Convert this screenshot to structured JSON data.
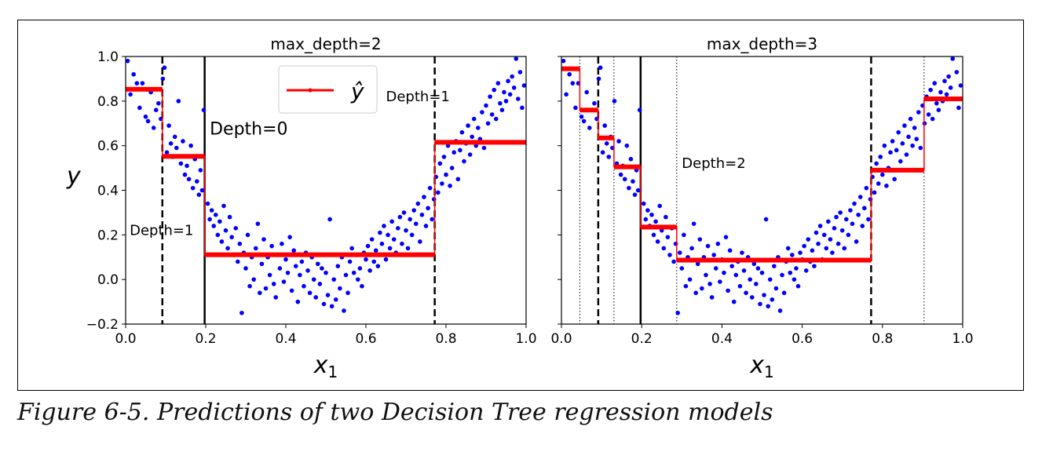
{
  "caption": "Figure 6-5. Predictions of two Decision Tree regression models",
  "chart_data": [
    {
      "type": "scatter",
      "title": "max_depth=2",
      "xlabel": "x",
      "xlabel_sub": "1",
      "ylabel": "y",
      "xlim": [
        0.0,
        1.0
      ],
      "ylim": [
        -0.2,
        1.0
      ],
      "xticks": [
        0.0,
        0.2,
        0.4,
        0.6,
        0.8,
        1.0
      ],
      "xtick_labels": [
        "0.0",
        "0.2",
        "0.4",
        "0.6",
        "0.8",
        "1.0"
      ],
      "yticks": [
        -0.2,
        0.0,
        0.2,
        0.4,
        0.6,
        0.8,
        1.0
      ],
      "ytick_labels": [
        "−0.2",
        "0.0",
        "0.2",
        "0.4",
        "0.6",
        "0.8",
        "1.0"
      ],
      "point_color": "#0000ff",
      "prediction_color": "#ff0000",
      "legend": {
        "label": "ŷ",
        "placement": "upper-center"
      },
      "prediction_steps": [
        {
          "x0": 0.0,
          "x1": 0.0917,
          "y": 0.853
        },
        {
          "x0": 0.0917,
          "x1": 0.1973,
          "y": 0.552
        },
        {
          "x0": 0.1973,
          "x1": 0.7718,
          "y": 0.111
        },
        {
          "x0": 0.7718,
          "x1": 1.0,
          "y": 0.615
        }
      ],
      "split_lines": [
        {
          "x": 0.1973,
          "style": "solid"
        },
        {
          "x": 0.0917,
          "style": "dashed"
        },
        {
          "x": 0.7718,
          "style": "dashed"
        }
      ],
      "annotations": [
        {
          "text": "Depth=0",
          "x": 0.21,
          "y": 0.65,
          "size": "large"
        },
        {
          "text": "Depth=1",
          "x": 0.01,
          "y": 0.2,
          "size": "medium"
        },
        {
          "text": "Depth=1",
          "x": 0.65,
          "y": 0.8,
          "size": "medium"
        }
      ],
      "points": [
        [
          0.005,
          0.98
        ],
        [
          0.012,
          0.83
        ],
        [
          0.02,
          0.92
        ],
        [
          0.028,
          0.88
        ],
        [
          0.035,
          0.77
        ],
        [
          0.042,
          0.88
        ],
        [
          0.05,
          0.73
        ],
        [
          0.056,
          0.71
        ],
        [
          0.063,
          0.84
        ],
        [
          0.07,
          0.68
        ],
        [
          0.076,
          0.76
        ],
        [
          0.082,
          0.79
        ],
        [
          0.088,
          0.72
        ],
        [
          0.093,
          0.9
        ],
        [
          0.097,
          0.95
        ],
        [
          0.103,
          0.57
        ],
        [
          0.108,
          0.69
        ],
        [
          0.113,
          0.61
        ],
        [
          0.118,
          0.55
        ],
        [
          0.123,
          0.64
        ],
        [
          0.127,
          0.59
        ],
        [
          0.132,
          0.8
        ],
        [
          0.138,
          0.52
        ],
        [
          0.143,
          0.62
        ],
        [
          0.148,
          0.47
        ],
        [
          0.153,
          0.51
        ],
        [
          0.158,
          0.45
        ],
        [
          0.163,
          0.6
        ],
        [
          0.168,
          0.41
        ],
        [
          0.173,
          0.54
        ],
        [
          0.178,
          0.44
        ],
        [
          0.183,
          0.38
        ],
        [
          0.187,
          0.49
        ],
        [
          0.191,
          0.4
        ],
        [
          0.195,
          0.76
        ],
        [
          0.205,
          0.34
        ],
        [
          0.21,
          0.27
        ],
        [
          0.215,
          0.31
        ],
        [
          0.22,
          0.24
        ],
        [
          0.225,
          0.29
        ],
        [
          0.23,
          0.2
        ],
        [
          0.235,
          0.26
        ],
        [
          0.24,
          0.17
        ],
        [
          0.245,
          0.33
        ],
        [
          0.25,
          0.22
        ],
        [
          0.255,
          0.14
        ],
        [
          0.26,
          0.28
        ],
        [
          0.265,
          0.19
        ],
        [
          0.27,
          0.11
        ],
        [
          0.275,
          0.23
        ],
        [
          0.28,
          0.08
        ],
        [
          0.285,
          0.16
        ],
        [
          0.29,
          -0.15
        ],
        [
          0.295,
          0.12
        ],
        [
          0.3,
          0.05
        ],
        [
          0.305,
          0.2
        ],
        [
          0.31,
          -0.03
        ],
        [
          0.315,
          0.1
        ],
        [
          0.32,
          0.0
        ],
        [
          0.325,
          0.14
        ],
        [
          0.33,
          0.25
        ],
        [
          0.335,
          -0.06
        ],
        [
          0.34,
          0.07
        ],
        [
          0.345,
          0.18
        ],
        [
          0.35,
          -0.04
        ],
        [
          0.355,
          0.1
        ],
        [
          0.36,
          0.02
        ],
        [
          0.365,
          0.15
        ],
        [
          0.37,
          -0.02
        ],
        [
          0.375,
          -0.08
        ],
        [
          0.38,
          0.11
        ],
        [
          0.385,
          0.05
        ],
        [
          0.39,
          0.16
        ],
        [
          0.395,
          -0.01
        ],
        [
          0.4,
          0.09
        ],
        [
          0.405,
          0.03
        ],
        [
          0.41,
          0.19
        ],
        [
          0.415,
          -0.05
        ],
        [
          0.42,
          0.13
        ],
        [
          0.425,
          0.06
        ],
        [
          0.43,
          -0.1
        ],
        [
          0.435,
          0.02
        ],
        [
          0.44,
          0.08
        ],
        [
          0.445,
          -0.03
        ],
        [
          0.45,
          0.12
        ],
        [
          0.455,
          0.04
        ],
        [
          0.46,
          -0.06
        ],
        [
          0.465,
          0.1
        ],
        [
          0.47,
          0.0
        ],
        [
          0.475,
          -0.08
        ],
        [
          0.48,
          0.07
        ],
        [
          0.485,
          -0.02
        ],
        [
          0.49,
          0.05
        ],
        [
          0.495,
          -0.11
        ],
        [
          0.5,
          0.03
        ],
        [
          0.505,
          -0.07
        ],
        [
          0.51,
          0.27
        ],
        [
          0.515,
          -0.12
        ],
        [
          0.52,
          0.0
        ],
        [
          0.525,
          -0.09
        ],
        [
          0.53,
          0.06
        ],
        [
          0.535,
          -0.04
        ],
        [
          0.54,
          0.1
        ],
        [
          0.545,
          -0.14
        ],
        [
          0.55,
          0.02
        ],
        [
          0.555,
          -0.06
        ],
        [
          0.56,
          0.08
        ],
        [
          0.565,
          0.14
        ],
        [
          0.57,
          0.03
        ],
        [
          0.575,
          0.11
        ],
        [
          0.58,
          0.0
        ],
        [
          0.585,
          0.05
        ],
        [
          0.59,
          -0.03
        ],
        [
          0.595,
          0.12
        ],
        [
          0.6,
          0.09
        ],
        [
          0.605,
          0.15
        ],
        [
          0.61,
          0.04
        ],
        [
          0.615,
          0.18
        ],
        [
          0.62,
          0.08
        ],
        [
          0.625,
          0.13
        ],
        [
          0.63,
          0.06
        ],
        [
          0.635,
          0.21
        ],
        [
          0.64,
          0.16
        ],
        [
          0.645,
          0.24
        ],
        [
          0.65,
          0.09
        ],
        [
          0.655,
          0.2
        ],
        [
          0.66,
          0.14
        ],
        [
          0.665,
          0.26
        ],
        [
          0.67,
          0.18
        ],
        [
          0.675,
          0.12
        ],
        [
          0.68,
          0.23
        ],
        [
          0.685,
          0.28
        ],
        [
          0.69,
          0.16
        ],
        [
          0.695,
          0.3
        ],
        [
          0.7,
          0.22
        ],
        [
          0.705,
          0.14
        ],
        [
          0.71,
          0.27
        ],
        [
          0.715,
          0.2
        ],
        [
          0.72,
          0.31
        ],
        [
          0.725,
          0.25
        ],
        [
          0.73,
          0.34
        ],
        [
          0.735,
          0.17
        ],
        [
          0.74,
          0.29
        ],
        [
          0.745,
          0.37
        ],
        [
          0.75,
          0.24
        ],
        [
          0.755,
          0.32
        ],
        [
          0.76,
          0.41
        ],
        [
          0.765,
          0.27
        ],
        [
          0.77,
          0.36
        ],
        [
          0.775,
          0.46
        ],
        [
          0.78,
          0.39
        ],
        [
          0.785,
          0.52
        ],
        [
          0.79,
          0.43
        ],
        [
          0.795,
          0.55
        ],
        [
          0.8,
          0.47
        ],
        [
          0.805,
          0.6
        ],
        [
          0.81,
          0.42
        ],
        [
          0.815,
          0.5
        ],
        [
          0.82,
          0.57
        ],
        [
          0.825,
          0.62
        ],
        [
          0.83,
          0.45
        ],
        [
          0.835,
          0.58
        ],
        [
          0.84,
          0.66
        ],
        [
          0.845,
          0.53
        ],
        [
          0.85,
          0.61
        ],
        [
          0.855,
          0.69
        ],
        [
          0.86,
          0.56
        ],
        [
          0.865,
          0.64
        ],
        [
          0.87,
          0.72
        ],
        [
          0.875,
          0.6
        ],
        [
          0.88,
          0.68
        ],
        [
          0.885,
          0.63
        ],
        [
          0.89,
          0.75
        ],
        [
          0.895,
          0.59
        ],
        [
          0.9,
          0.78
        ],
        [
          0.905,
          0.7
        ],
        [
          0.91,
          0.82
        ],
        [
          0.915,
          0.74
        ],
        [
          0.92,
          0.85
        ],
        [
          0.925,
          0.72
        ],
        [
          0.93,
          0.88
        ],
        [
          0.935,
          0.79
        ],
        [
          0.94,
          0.76
        ],
        [
          0.945,
          0.84
        ],
        [
          0.95,
          0.8
        ],
        [
          0.955,
          0.89
        ],
        [
          0.96,
          0.83
        ],
        [
          0.965,
          0.91
        ],
        [
          0.97,
          0.86
        ],
        [
          0.975,
          0.99
        ],
        [
          0.98,
          0.81
        ],
        [
          0.985,
          0.93
        ],
        [
          0.99,
          0.77
        ],
        [
          0.995,
          0.87
        ]
      ]
    },
    {
      "type": "scatter",
      "title": "max_depth=3",
      "xlabel": "x",
      "xlabel_sub": "1",
      "ylabel": "",
      "xlim": [
        0.0,
        1.0
      ],
      "ylim": [
        -0.2,
        1.0
      ],
      "xticks": [
        0.0,
        0.2,
        0.4,
        0.6,
        0.8,
        1.0
      ],
      "xtick_labels": [
        "0.0",
        "0.2",
        "0.4",
        "0.6",
        "0.8",
        "1.0"
      ],
      "yticks": [
        -0.2,
        0.0,
        0.2,
        0.4,
        0.6,
        0.8,
        1.0
      ],
      "ytick_labels": [],
      "point_color": "#0000ff",
      "prediction_color": "#ff0000",
      "prediction_steps": [
        {
          "x0": 0.0,
          "x1": 0.0458,
          "y": 0.945
        },
        {
          "x0": 0.0458,
          "x1": 0.0917,
          "y": 0.76
        },
        {
          "x0": 0.0917,
          "x1": 0.1309,
          "y": 0.635
        },
        {
          "x0": 0.1309,
          "x1": 0.1973,
          "y": 0.505
        },
        {
          "x0": 0.1973,
          "x1": 0.2873,
          "y": 0.235
        },
        {
          "x0": 0.2873,
          "x1": 0.7718,
          "y": 0.087
        },
        {
          "x0": 0.7718,
          "x1": 0.9038,
          "y": 0.49
        },
        {
          "x0": 0.9038,
          "x1": 1.0,
          "y": 0.81
        }
      ],
      "split_lines": [
        {
          "x": 0.1973,
          "style": "solid"
        },
        {
          "x": 0.0917,
          "style": "dashed"
        },
        {
          "x": 0.7718,
          "style": "dashed"
        },
        {
          "x": 0.0458,
          "style": "dotted"
        },
        {
          "x": 0.1309,
          "style": "dotted"
        },
        {
          "x": 0.2873,
          "style": "dotted"
        },
        {
          "x": 0.9038,
          "style": "dotted"
        }
      ],
      "annotations": [
        {
          "text": "Depth=2",
          "x": 0.3,
          "y": 0.5,
          "size": "medium"
        }
      ],
      "points": "same"
    }
  ]
}
